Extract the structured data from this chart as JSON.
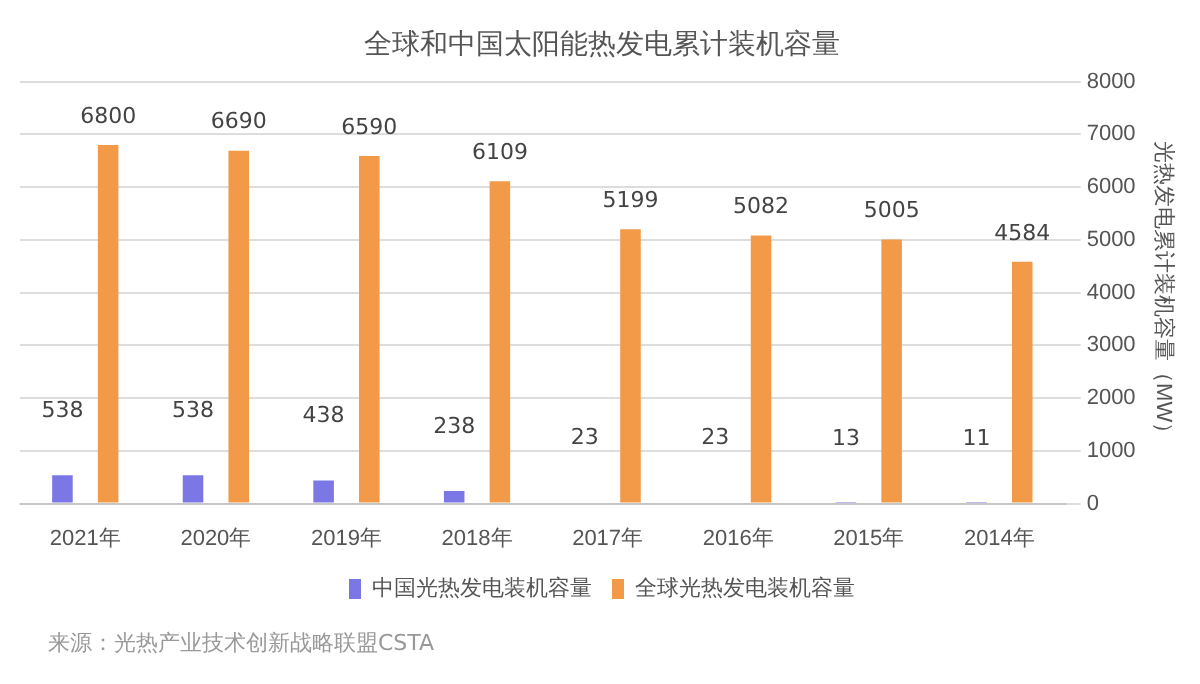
{
  "chart_data": {
    "type": "bar",
    "title": "全球和中国太阳能热发电累计装机容量",
    "ylabel": "光热发电累计装机容量（MW）",
    "categories": [
      "2021年",
      "2020年",
      "2019年",
      "2018年",
      "2017年",
      "2016年",
      "2015年",
      "2014年"
    ],
    "series": [
      {
        "name": "中国光热发电装机容量",
        "color": "#7b78e6",
        "values": [
          538,
          538,
          438,
          238,
          23,
          23,
          13,
          11
        ]
      },
      {
        "name": "全球光热发电装机容量",
        "color": "#f29a48",
        "values": [
          6800,
          6690,
          6590,
          6109,
          5199,
          5082,
          5005,
          4584
        ]
      }
    ],
    "ylim": [
      0,
      8000
    ],
    "yticks": [
      0,
      1000,
      2000,
      3000,
      4000,
      5000,
      6000,
      7000,
      8000
    ],
    "grid": "y",
    "legend": "bottom",
    "data_labels": true,
    "annotations": [
      "来源：光热产业技术创新战略联盟CSTA"
    ]
  }
}
